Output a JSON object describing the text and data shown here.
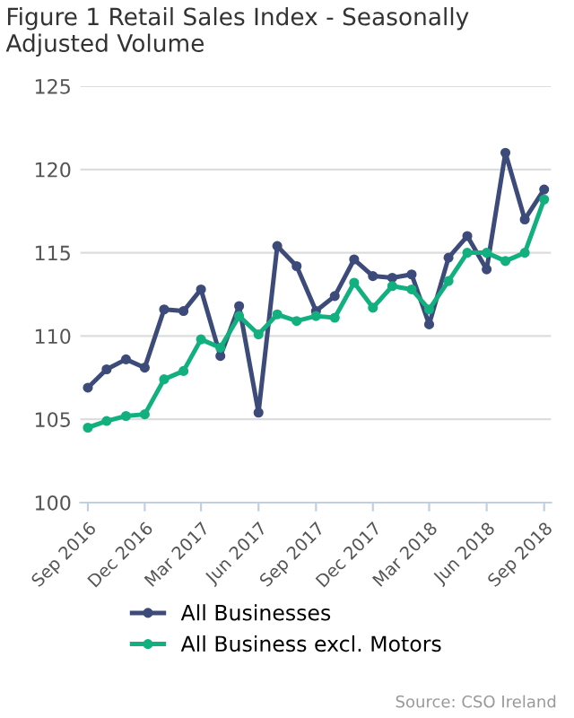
{
  "chart_data": {
    "type": "line",
    "title": "Figure 1 Retail Sales Index - Seasonally Adjusted Volume",
    "x": [
      "2016-09",
      "2016-10",
      "2016-11",
      "2016-12",
      "2017-01",
      "2017-02",
      "2017-03",
      "2017-04",
      "2017-05",
      "2017-06",
      "2017-07",
      "2017-08",
      "2017-09",
      "2017-10",
      "2017-11",
      "2017-12",
      "2018-01",
      "2018-02",
      "2018-03",
      "2018-04",
      "2018-05",
      "2018-06",
      "2018-07",
      "2018-08",
      "2018-09"
    ],
    "series": [
      {
        "name": "All Businesses",
        "color": "#3c4b7a",
        "values": [
          106.9,
          108.0,
          108.6,
          108.1,
          111.6,
          111.5,
          112.8,
          108.8,
          111.8,
          105.4,
          115.4,
          114.2,
          111.5,
          112.4,
          114.6,
          113.6,
          113.5,
          113.7,
          110.7,
          114.7,
          116.0,
          114.0,
          121.0,
          117.0,
          118.8
        ]
      },
      {
        "name": "All Business excl. Motors",
        "color": "#12b07f",
        "values": [
          104.5,
          104.9,
          105.2,
          105.3,
          107.4,
          107.9,
          109.8,
          109.3,
          111.2,
          110.1,
          111.3,
          110.9,
          111.2,
          111.1,
          113.2,
          111.7,
          113.0,
          112.8,
          111.6,
          113.3,
          115.0,
          115.0,
          114.5,
          115.0,
          118.2
        ]
      }
    ],
    "xlim": [
      "2016-08-20",
      "2018-09-12"
    ],
    "ylim": [
      100,
      125
    ],
    "yticks": [
      100,
      105,
      110,
      115,
      120,
      125
    ],
    "xticks": [
      {
        "value": "2016-09",
        "label": "Sep 2016"
      },
      {
        "value": "2016-12",
        "label": "Dec 2016"
      },
      {
        "value": "2017-03",
        "label": "Mar 2017"
      },
      {
        "value": "2017-06",
        "label": "Jun 2017"
      },
      {
        "value": "2017-09",
        "label": "Sep 2017"
      },
      {
        "value": "2017-12",
        "label": "Dec 2017"
      },
      {
        "value": "2018-03",
        "label": "Mar 2018"
      },
      {
        "value": "2018-06",
        "label": "Jun 2018"
      },
      {
        "value": "2018-09",
        "label": "Sep 2018"
      }
    ],
    "grid": "y",
    "legend": "bottom",
    "marker": "circle",
    "line_style": "solid",
    "annotations": [
      "Source: CSO Ireland"
    ]
  }
}
